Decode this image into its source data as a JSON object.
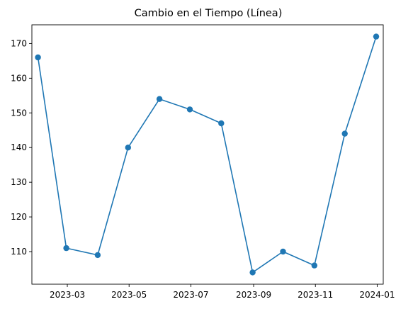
{
  "chart_data": {
    "type": "line",
    "title": "Cambio en el Tiempo (Línea)",
    "xlabel": "",
    "ylabel": "",
    "x_scale": "date",
    "xlim": [
      "2023-01-25",
      "2024-01-07"
    ],
    "ylim": [
      100.6,
      175.4
    ],
    "x_ticks": [
      "2023-03",
      "2023-05",
      "2023-07",
      "2023-09",
      "2023-11",
      "2024-01"
    ],
    "y_ticks": [
      110,
      120,
      130,
      140,
      150,
      160,
      170
    ],
    "grid": false,
    "legend": "none",
    "marker": "circle",
    "color": "#1f77b4",
    "series": [
      {
        "x": [
          "2023-01-31",
          "2023-02-28",
          "2023-03-31",
          "2023-04-30",
          "2023-05-31",
          "2023-06-30",
          "2023-07-31",
          "2023-08-31",
          "2023-09-30",
          "2023-10-31",
          "2023-11-30",
          "2023-12-31"
        ],
        "values": [
          166,
          111,
          109,
          140,
          154,
          151,
          147,
          104,
          110,
          106,
          144,
          172
        ]
      }
    ]
  }
}
